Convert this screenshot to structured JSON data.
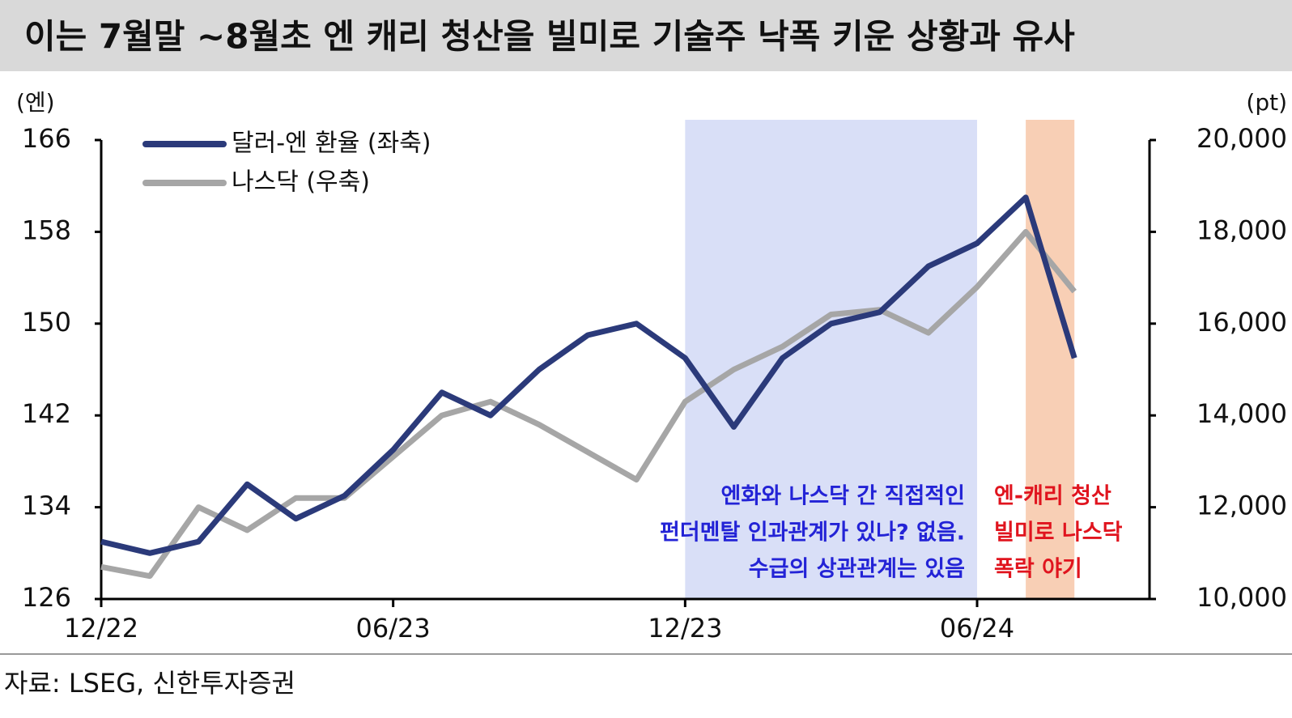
{
  "chart_data": {
    "type": "line",
    "title": "이는 7월말 ~8월초 엔 캐리 청산을 빌미로 기술주 낙폭 키운 상황과 유사",
    "y_unit": "(엔)",
    "y2_unit": "(pt)",
    "source": "자료: LSEG, 신한투자증권",
    "x": [
      "2022-12",
      "2023-01",
      "2023-02",
      "2023-03",
      "2023-04",
      "2023-05",
      "2023-06",
      "2023-07",
      "2023-08",
      "2023-09",
      "2023-10",
      "2023-11",
      "2023-12",
      "2024-01",
      "2024-02",
      "2024-03",
      "2024-04",
      "2024-05",
      "2024-06",
      "2024-07",
      "2024-08"
    ],
    "xticks": [
      {
        "value": "2022-12",
        "label": "12/22"
      },
      {
        "value": "2023-06",
        "label": "06/23"
      },
      {
        "value": "2023-12",
        "label": "12/23"
      },
      {
        "value": "2024-06",
        "label": "06/24"
      }
    ],
    "ylim": [
      126,
      166
    ],
    "yticks": [
      126,
      134,
      142,
      150,
      158,
      166
    ],
    "y2lim": [
      10000,
      20000
    ],
    "y2ticks": [
      {
        "value": 10000,
        "label": "10,000"
      },
      {
        "value": 12000,
        "label": "12,000"
      },
      {
        "value": 14000,
        "label": "14,000"
      },
      {
        "value": 16000,
        "label": "16,000"
      },
      {
        "value": 18000,
        "label": "18,000"
      },
      {
        "value": 20000,
        "label": "20,000"
      }
    ],
    "series": [
      {
        "name": "달러-엔 환율 (좌축)",
        "color": "#2b3a7a",
        "values": [
          131,
          130,
          131,
          136,
          133,
          135,
          139,
          144,
          142,
          146,
          149,
          150,
          147,
          141,
          147,
          150,
          151,
          155,
          157,
          161,
          147
        ]
      },
      {
        "name": "나스닥 (우축)",
        "color": "#a6a6a6",
        "axis": "y2",
        "values": [
          10700,
          10500,
          12000,
          11500,
          12200,
          12200,
          13100,
          14000,
          14300,
          13800,
          13200,
          12600,
          14300,
          15000,
          15500,
          16200,
          16300,
          15800,
          16800,
          18000,
          16700
        ]
      }
    ],
    "shaded_regions": [
      {
        "from": "2023-12",
        "to": "2024-06",
        "color": "#d9dff7"
      },
      {
        "from": "2024-07",
        "to": "2024-08",
        "color": "#f8cfb5"
      }
    ],
    "annotations": [
      {
        "lines": [
          "엔화와 나스닥 간 직접적인",
          "펀더멘탈 인과관계가 있나? 없음.",
          "수급의 상관관계는 있음"
        ],
        "color": "#2323d6"
      },
      {
        "lines": [
          "엔-캐리 청산",
          "빌미로 나스닥",
          "폭락 야기"
        ],
        "color": "#e0141e"
      }
    ]
  }
}
